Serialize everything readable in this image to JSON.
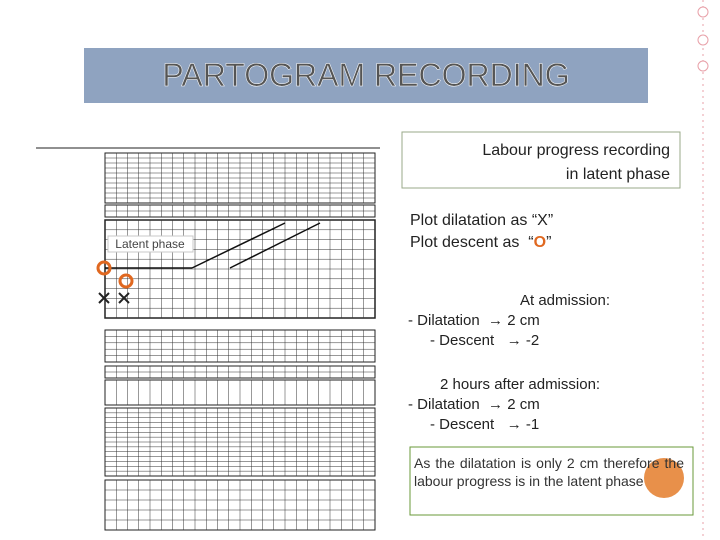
{
  "header": {
    "title": "PARTOGRAM RECORDING"
  },
  "figure": {
    "latent_label": "Latent phase"
  },
  "callout": {
    "line1": "Labour progress recording",
    "line2": "in latent phase"
  },
  "instructions": {
    "dilatation": "Plot dilatation as “X”",
    "descent_prefix": "Plot descent as  “",
    "descent_symbol": "O",
    "descent_suffix": "”"
  },
  "admission": {
    "heading": "At admission:",
    "dilatation": "- Dilatation  → 2 cm",
    "descent": "- Descent   → -2"
  },
  "two_hours": {
    "heading": "2 hours after admission:",
    "dilatation": "- Dilatation  → 2 cm",
    "descent": "- Descent   → -1"
  },
  "note": {
    "text": "As the dilatation is only 2 cm therefore the labour progress is in the latent phase"
  }
}
